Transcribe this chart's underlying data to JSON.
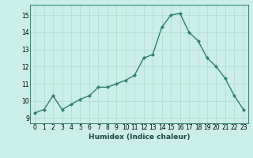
{
  "x": [
    0,
    1,
    2,
    3,
    4,
    5,
    6,
    7,
    8,
    9,
    10,
    11,
    12,
    13,
    14,
    15,
    16,
    17,
    18,
    19,
    20,
    21,
    22,
    23
  ],
  "y": [
    9.3,
    9.5,
    10.3,
    9.5,
    9.8,
    10.1,
    10.3,
    10.8,
    10.8,
    11.0,
    11.2,
    11.5,
    12.5,
    12.7,
    14.3,
    15.0,
    15.1,
    14.0,
    13.5,
    12.5,
    12.0,
    11.3,
    10.3,
    9.5
  ],
  "line_color": "#2d7f6e",
  "marker": "D",
  "marker_size": 2.0,
  "bg_color": "#cceee8",
  "grid_major_color": "#b0d8d0",
  "grid_minor_color": "#c5e8e2",
  "xlabel": "Humidex (Indice chaleur)",
  "ylabel_ticks": [
    9,
    10,
    11,
    12,
    13,
    14,
    15
  ],
  "xlim": [
    -0.5,
    23.5
  ],
  "ylim": [
    8.7,
    15.6
  ],
  "xlabel_fontsize": 6.5,
  "tick_fontsize": 5.5
}
